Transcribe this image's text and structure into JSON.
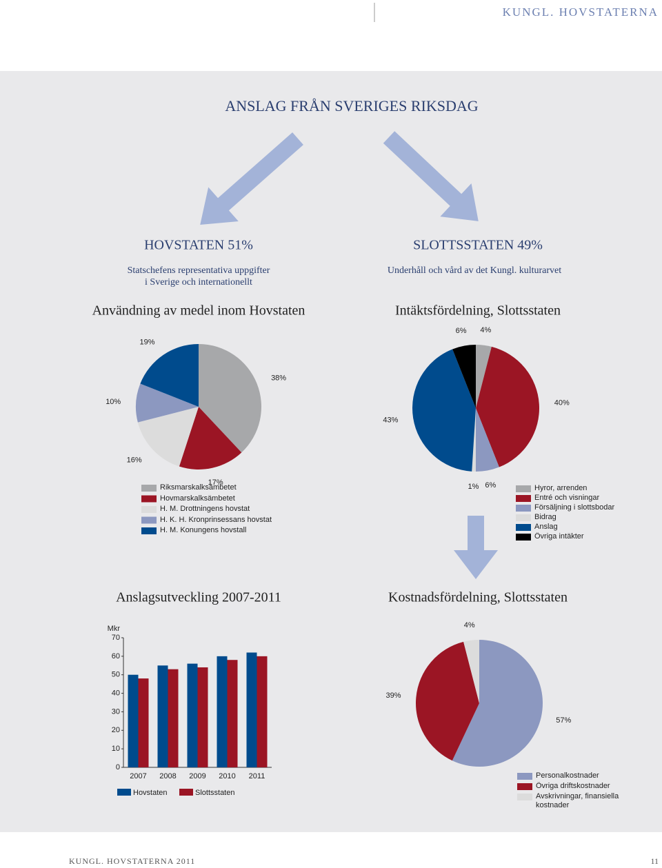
{
  "header": "KUNGL. HOVSTATERNA",
  "title": "ANSLAG FRÅN SVERIGES RIKSDAG",
  "hovstaten": {
    "title": "HOVSTATEN 51%",
    "lines": [
      "Statschefens representativa uppgifter",
      "i Sverige och internationellt"
    ]
  },
  "slottsstaten": {
    "title": "SLOTTSSTATEN 49%",
    "subtitle": "Underhåll och vård av det Kungl. kulturarvet"
  },
  "chart_data": [
    {
      "type": "pie",
      "title": "Användning av medel inom Hovstaten",
      "categories": [
        "Riksmarskalksämbetet",
        "Hovmarskalksämbetet",
        "H. M. Drottningens hovstat",
        "H. K. H. Kronprinsessans hovstat",
        "H. M. Konungens hovstall"
      ],
      "values": [
        38,
        17,
        16,
        10,
        19
      ],
      "value_labels": [
        "38%",
        "17%",
        "16%",
        "10%",
        "19%"
      ],
      "colors": [
        "#a7a8aa",
        "#9b1524",
        "#dcdcdc",
        "#8c98c0",
        "#004b8d"
      ]
    },
    {
      "type": "pie",
      "title": "Intäktsfördelning, Slottsstaten",
      "categories": [
        "Hyror, arrenden",
        "Entré och visningar",
        "Försäljning i slottsbodar",
        "Bidrag",
        "Anslag",
        "Övriga intäkter"
      ],
      "values": [
        4,
        40,
        6,
        1,
        43,
        6
      ],
      "value_labels": [
        "4%",
        "40%",
        "6%",
        "1%",
        "43%",
        "6%"
      ],
      "colors": [
        "#a7a8aa",
        "#9b1524",
        "#8c98c0",
        "#dcdcdc",
        "#004b8d",
        "#000000"
      ]
    },
    {
      "type": "bar",
      "title": "Anslagsutveckling 2007-2011",
      "y_label": "Mkr",
      "categories": [
        "2007",
        "2008",
        "2009",
        "2010",
        "2011"
      ],
      "series": [
        {
          "name": "Hovstaten",
          "color": "#004b8d",
          "values": [
            50,
            55,
            56,
            60,
            62
          ]
        },
        {
          "name": "Slottsstaten",
          "color": "#9b1524",
          "values": [
            48,
            53,
            54,
            58,
            60
          ]
        }
      ],
      "ylim": [
        0,
        70
      ],
      "yticks": [
        0,
        10,
        20,
        30,
        40,
        50,
        60,
        70
      ]
    },
    {
      "type": "pie",
      "title": "Kostnadsfördelning, Slottsstaten",
      "categories": [
        "Personalkostnader",
        "Övriga driftskostnader",
        "Avskrivningar, finansiella kostnader"
      ],
      "values": [
        57,
        39,
        4
      ],
      "value_labels": [
        "57%",
        "39%",
        "4%"
      ],
      "colors": [
        "#8c98c0",
        "#9b1524",
        "#dcdcdc"
      ]
    }
  ],
  "footer": {
    "text": "KUNGL. HOVSTATERNA 2011",
    "page": "11"
  }
}
